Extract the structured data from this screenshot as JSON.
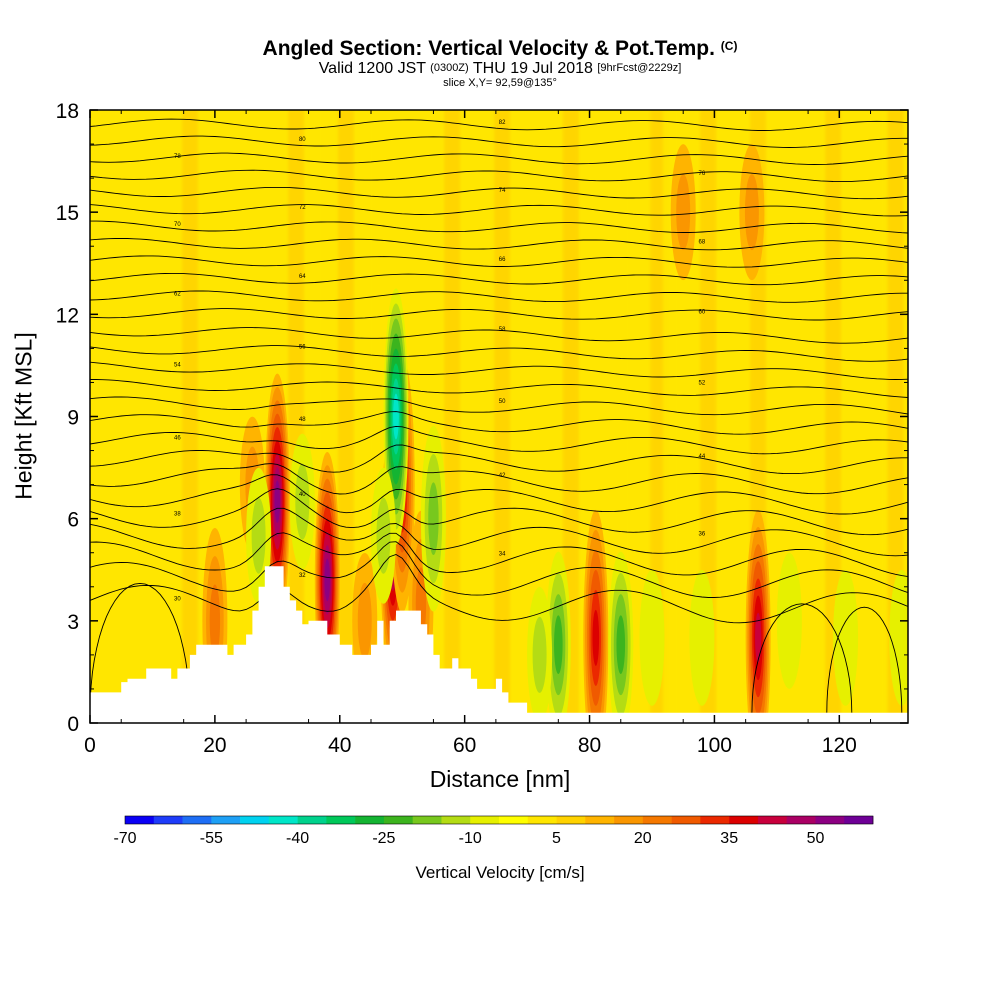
{
  "title": {
    "main": "Angled Section: Vertical Velocity & Pot.Temp.",
    "main_units": "(C)",
    "valid_prefix": "Valid 1200 JST",
    "valid_utc": "(0300Z)",
    "valid_date": "THU 19 Jul 2018",
    "valid_fcst": "[9hrFcst@2229z]",
    "slice": "slice X,Y= 92,59@135°"
  },
  "chart_data": {
    "type": "heatmap",
    "xlabel": "Distance [nm]",
    "ylabel": "Height [Kft MSL]",
    "xlim": [
      0,
      131
    ],
    "ylim": [
      0,
      18
    ],
    "xticks": [
      0,
      20,
      40,
      60,
      80,
      100,
      120
    ],
    "yticks": [
      0,
      3,
      6,
      9,
      12,
      15,
      18
    ],
    "colorbar": {
      "title": "Vertical Velocity [cm/s]",
      "min": -70,
      "max": 60,
      "step": 5,
      "tick_labels": [
        "-70",
        "-55",
        "-40",
        "-25",
        "-10",
        "5",
        "20",
        "35",
        "50"
      ],
      "colors": [
        "#0a00f5",
        "#1e3cfa",
        "#1e6ef5",
        "#1ea0f5",
        "#00d2f0",
        "#00e6c8",
        "#00d28c",
        "#00c85a",
        "#14b432",
        "#3cb41e",
        "#78c81e",
        "#b4dc14",
        "#e6f000",
        "#ffff00",
        "#ffe600",
        "#ffd200",
        "#ffb400",
        "#fa9600",
        "#f57800",
        "#f05a00",
        "#eb2800",
        "#dc0000",
        "#c8003c",
        "#aa0064",
        "#8c0082",
        "#6e0096"
      ]
    },
    "terrain": [
      [
        0,
        0.9
      ],
      [
        5,
        0.9
      ],
      [
        5,
        1.2
      ],
      [
        6,
        1.2
      ],
      [
        6,
        1.3
      ],
      [
        7,
        1.3
      ],
      [
        8,
        1.3
      ],
      [
        9,
        1.3
      ],
      [
        9,
        1.6
      ],
      [
        13,
        1.6
      ],
      [
        13,
        1.3
      ],
      [
        14,
        1.3
      ],
      [
        14,
        1.6
      ],
      [
        16,
        1.6
      ],
      [
        16,
        2.0
      ],
      [
        17,
        2.0
      ],
      [
        17,
        2.3
      ],
      [
        22,
        2.3
      ],
      [
        22,
        2.0
      ],
      [
        23,
        2.0
      ],
      [
        23,
        2.3
      ],
      [
        25,
        2.3
      ],
      [
        25,
        2.6
      ],
      [
        26,
        2.6
      ],
      [
        26,
        3.3
      ],
      [
        27,
        3.3
      ],
      [
        27,
        4.0
      ],
      [
        28,
        4.0
      ],
      [
        28,
        4.6
      ],
      [
        31,
        4.6
      ],
      [
        31,
        4.0
      ],
      [
        32,
        4.0
      ],
      [
        32,
        3.6
      ],
      [
        33,
        3.6
      ],
      [
        33,
        3.3
      ],
      [
        34,
        3.3
      ],
      [
        34,
        2.9
      ],
      [
        35,
        2.9
      ],
      [
        35,
        3.0
      ],
      [
        38,
        3.0
      ],
      [
        38,
        2.6
      ],
      [
        40,
        2.6
      ],
      [
        40,
        2.3
      ],
      [
        42,
        2.3
      ],
      [
        42,
        2.0
      ],
      [
        45,
        2.0
      ],
      [
        45,
        2.3
      ],
      [
        46,
        2.3
      ],
      [
        46,
        3.0
      ],
      [
        47,
        3.0
      ],
      [
        47,
        2.3
      ],
      [
        48,
        2.3
      ],
      [
        48,
        3.0
      ],
      [
        49,
        3.0
      ],
      [
        49,
        3.3
      ],
      [
        53,
        3.3
      ],
      [
        53,
        2.9
      ],
      [
        54,
        2.9
      ],
      [
        54,
        2.6
      ],
      [
        55,
        2.6
      ],
      [
        55,
        2.0
      ],
      [
        56,
        2.0
      ],
      [
        56,
        1.6
      ],
      [
        58,
        1.6
      ],
      [
        58,
        1.9
      ],
      [
        59,
        1.9
      ],
      [
        59,
        1.6
      ],
      [
        61,
        1.6
      ],
      [
        61,
        1.3
      ],
      [
        62,
        1.3
      ],
      [
        62,
        1.0
      ],
      [
        65,
        1.0
      ],
      [
        65,
        1.3
      ],
      [
        66,
        1.3
      ],
      [
        66,
        0.9
      ],
      [
        67,
        0.9
      ],
      [
        67,
        0.6
      ],
      [
        70,
        0.6
      ],
      [
        70,
        0.3
      ],
      [
        131,
        0.3
      ]
    ],
    "theta_levels": [
      "30",
      "32",
      "34",
      "36",
      "38",
      "40",
      "42",
      "44",
      "46",
      "48",
      "50",
      "52",
      "54",
      "56",
      "58",
      "60",
      "62",
      "64",
      "66",
      "68",
      "70",
      "72",
      "74",
      "76",
      "78",
      "80",
      "82"
    ],
    "updrafts": [
      {
        "x": 30.0,
        "z": 6.5,
        "w": 50
      },
      {
        "x": 38.0,
        "z": 4.2,
        "w": 50
      },
      {
        "x": 48.5,
        "z": 5.0,
        "w": 45
      },
      {
        "x": 50.0,
        "z": 7.0,
        "w": 35
      },
      {
        "x": 81.0,
        "z": 2.5,
        "w": 35
      },
      {
        "x": 107.0,
        "z": 2.5,
        "w": 40
      },
      {
        "x": 53.0,
        "z": 3.5,
        "w": 20
      },
      {
        "x": 20.0,
        "z": 3.0,
        "w": 20
      },
      {
        "x": 26.0,
        "z": 7.0,
        "w": 15
      },
      {
        "x": 44.0,
        "z": 3.0,
        "w": 15
      },
      {
        "x": 95.0,
        "z": 15.0,
        "w": 15
      },
      {
        "x": 106.0,
        "z": 15.0,
        "w": 15
      },
      {
        "x": 75.0,
        "z": 2.3,
        "w": -25
      },
      {
        "x": 85.0,
        "z": 2.3,
        "w": -25
      },
      {
        "x": 49.0,
        "z": 9.0,
        "w": -45
      },
      {
        "x": 55.0,
        "z": 6.0,
        "w": -20
      },
      {
        "x": 27.0,
        "z": 5.5,
        "w": -15
      },
      {
        "x": 34.0,
        "z": 6.5,
        "w": -15
      },
      {
        "x": 47.0,
        "z": 5.5,
        "w": -15
      },
      {
        "x": 72.0,
        "z": 2.0,
        "w": -15
      },
      {
        "x": 90.0,
        "z": 2.5,
        "w": -12
      },
      {
        "x": 98.0,
        "z": 2.5,
        "w": -12
      },
      {
        "x": 112.0,
        "z": 3.0,
        "w": -10
      },
      {
        "x": 121.0,
        "z": 2.5,
        "w": -12
      },
      {
        "x": 130.0,
        "z": 2.5,
        "w": -12
      },
      {
        "x": 117.0,
        "z": 4.5,
        "w": -8
      },
      {
        "x": 24.0,
        "z": 12.0,
        "w": -6
      },
      {
        "x": 34.0,
        "z": 14.0,
        "w": -6
      },
      {
        "x": 68.0,
        "z": 12.0,
        "w": -6
      }
    ]
  }
}
